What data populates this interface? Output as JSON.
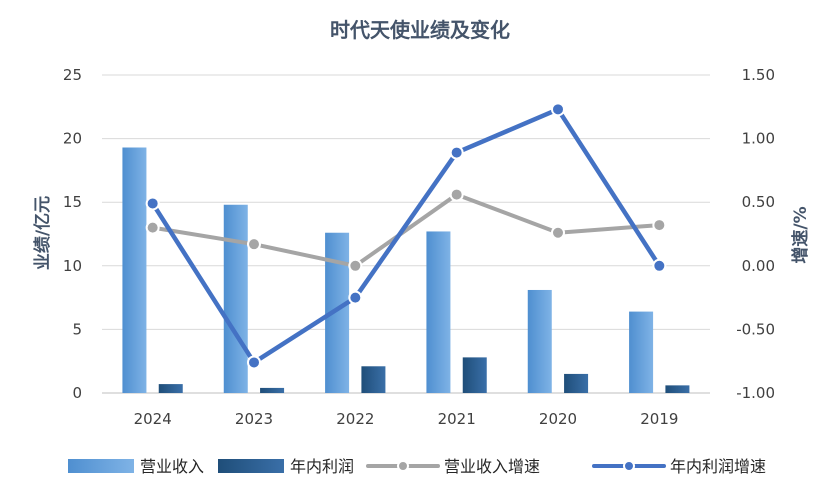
{
  "chart_data": {
    "type": "bar",
    "title": "时代天使业绩及变化",
    "categories": [
      "2024",
      "2023",
      "2022",
      "2021",
      "2020",
      "2019"
    ],
    "ylabel": "业绩/亿元",
    "y2label": "增速/%",
    "ylim": [
      0,
      25
    ],
    "y2lim": [
      -1.0,
      1.5
    ],
    "yticks": [
      "0",
      "5",
      "10",
      "15",
      "20",
      "25"
    ],
    "y2ticks": [
      "-1.00",
      "-0.50",
      "0.00",
      "0.50",
      "1.00",
      "1.50"
    ],
    "grid": true,
    "legend_position": "bottom",
    "series": [
      {
        "name": "营业收入",
        "type": "bar",
        "axis": "left",
        "color": "#5b9bd5",
        "values": [
          19.3,
          14.8,
          12.6,
          12.7,
          8.1,
          6.4
        ]
      },
      {
        "name": "年内利润",
        "type": "bar",
        "axis": "left",
        "color": "#255e91",
        "values": [
          0.7,
          0.4,
          2.1,
          2.8,
          1.5,
          0.6
        ]
      },
      {
        "name": "营业收入增速",
        "type": "line",
        "axis": "right",
        "color": "#a5a5a5",
        "values": [
          0.3,
          0.17,
          0.0,
          0.56,
          0.26,
          0.32
        ]
      },
      {
        "name": "年内利润增速",
        "type": "line",
        "axis": "right",
        "color": "#4472c4",
        "values": [
          0.49,
          -0.76,
          -0.25,
          0.89,
          1.23,
          0.0
        ]
      }
    ]
  }
}
